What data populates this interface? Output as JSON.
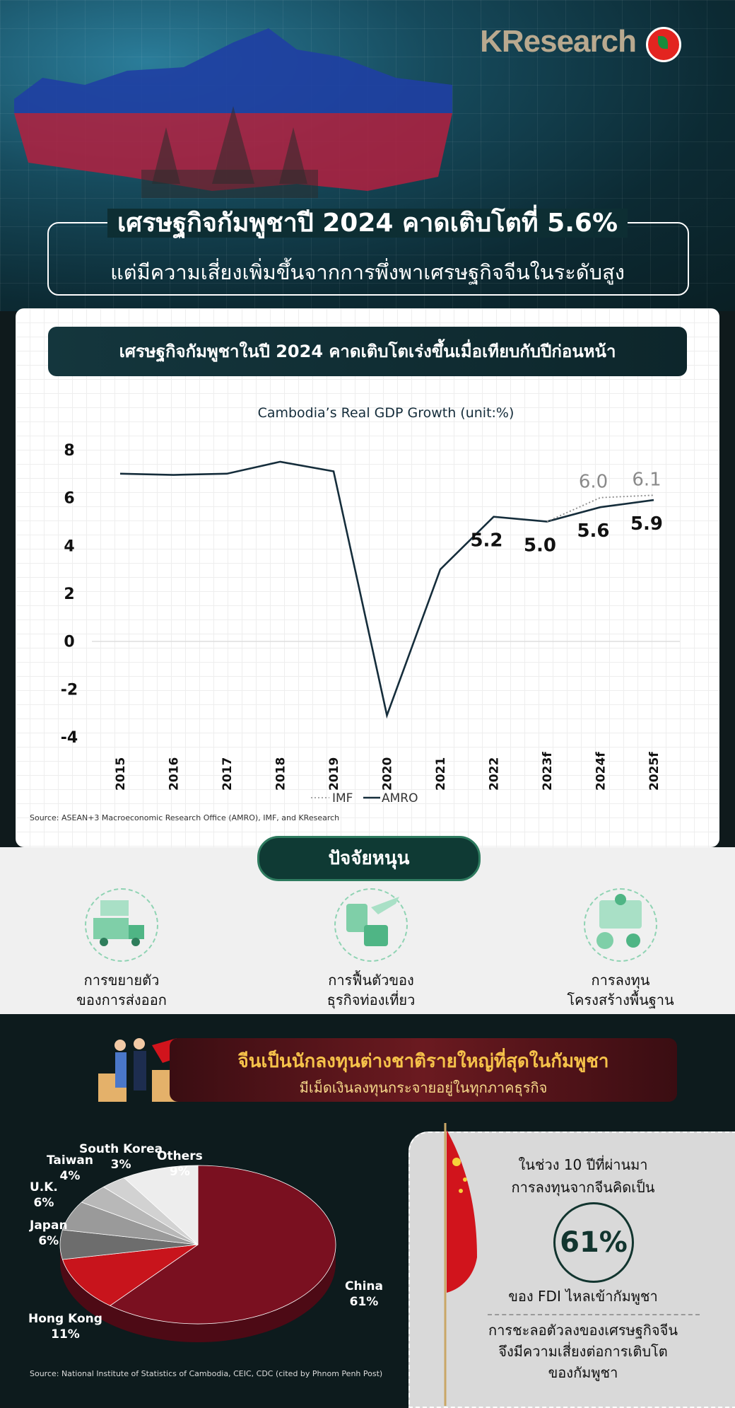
{
  "brand": {
    "logo_text": "KResearch"
  },
  "header": {
    "title": "เศรษฐกิจกัมพูชาปี 2024 คาดเติบโตที่ 5.6%",
    "subtitle": "แต่มีความเสี่ยงเพิ่มขึ้นจากการพึ่งพาเศรษฐกิจจีนในระดับสูง"
  },
  "chart_section": {
    "banner": "เศรษฐกิจกัมพูชาในปี 2024 คาดเติบโตเร่งขึ้นเมื่อเทียบกับปีก่อนหน้า",
    "source": "Source: ASEAN+3 Macroeconomic Research Office (AMRO), IMF, and KResearch"
  },
  "chart_data": [
    {
      "type": "line",
      "title": "Cambodia’s Real GDP Growth (unit:%)",
      "categories": [
        "2015",
        "2016",
        "2017",
        "2018",
        "2019",
        "2020",
        "2021",
        "2022",
        "2023f",
        "2024f",
        "2025f"
      ],
      "ylim": [
        -4,
        8
      ],
      "yticks": [
        "8",
        "6",
        "4",
        "2",
        "0",
        "-2",
        "-4"
      ],
      "legend": [
        "IMF",
        "AMRO"
      ],
      "legend_position": "bottom",
      "series": [
        {
          "name": "AMRO",
          "values": [
            7.0,
            6.95,
            7.0,
            7.5,
            7.1,
            -3.1,
            3.0,
            5.2,
            5.0,
            5.6,
            5.9
          ],
          "labels": {
            "7": "5.2",
            "8": "5.0",
            "9": "5.6",
            "10": "5.9"
          },
          "color": "#152d3b",
          "style": "solid"
        },
        {
          "name": "IMF",
          "values": [
            null,
            null,
            null,
            null,
            null,
            null,
            null,
            null,
            5.0,
            6.0,
            6.1
          ],
          "labels": {
            "9": "6.0",
            "10": "6.1"
          },
          "color": "#8a8a8a",
          "style": "dotted"
        }
      ],
      "grid": false
    },
    {
      "type": "pie",
      "categories": [
        "China",
        "Hong Kong",
        "Japan",
        "U.K.",
        "Taiwan",
        "South Korea",
        "Others"
      ],
      "values": [
        61,
        11,
        6,
        6,
        4,
        3,
        9
      ],
      "value_labels": [
        "61%",
        "11%",
        "6%",
        "6%",
        "4%",
        "3%",
        "9%"
      ],
      "colors": [
        "#7a1020",
        "#c8141c",
        "#6d6d6d",
        "#9a9a9a",
        "#b8b8b8",
        "#d2d2d2",
        "#ededed"
      ]
    }
  ],
  "factors": {
    "heading": "ปัจจัยหนุน",
    "items": [
      {
        "line1": "การขยายตัว",
        "line2": "ของการส่งออก"
      },
      {
        "line1": "การฟื้นตัวของ",
        "line2": "ธุรกิจท่องเที่ยว"
      },
      {
        "line1": "การลงทุน",
        "line2": "โครงสร้างพื้นฐาน"
      }
    ]
  },
  "china": {
    "banner_title": "จีนเป็นนักลงทุนต่างชาติรายใหญ่ที่สุดในกัมพูชา",
    "banner_sub": "มีเม็ดเงินลงทุนกระจายอยู่ในทุกภาคธุรกิจ",
    "pie_labels": [
      {
        "name": "China",
        "pct": "61%"
      },
      {
        "name": "Hong Kong",
        "pct": "11%"
      },
      {
        "name": "Japan",
        "pct": "6%"
      },
      {
        "name": "U.K.",
        "pct": "6%"
      },
      {
        "name": "Taiwan",
        "pct": "4%"
      },
      {
        "name": "South Korea",
        "pct": "3%"
      },
      {
        "name": "Others",
        "pct": "9%"
      }
    ],
    "card": {
      "line1": "ในช่วง 10 ปีที่ผ่านมา",
      "line2": "การลงทุนจากจีนคิดเป็น",
      "big": "61%",
      "line3": "ของ FDI ไหลเข้ากัมพูชา",
      "line4": "การชะลอตัวลงของเศรษฐกิจจีน",
      "line5": "จึงมีความเสี่ยงต่อการเติบโต",
      "line6": "ของกัมพูชา"
    },
    "source": "Source: National Institute of Statistics of Cambodia, CEIC, CDC (cited by Phnom Penh Post)"
  }
}
